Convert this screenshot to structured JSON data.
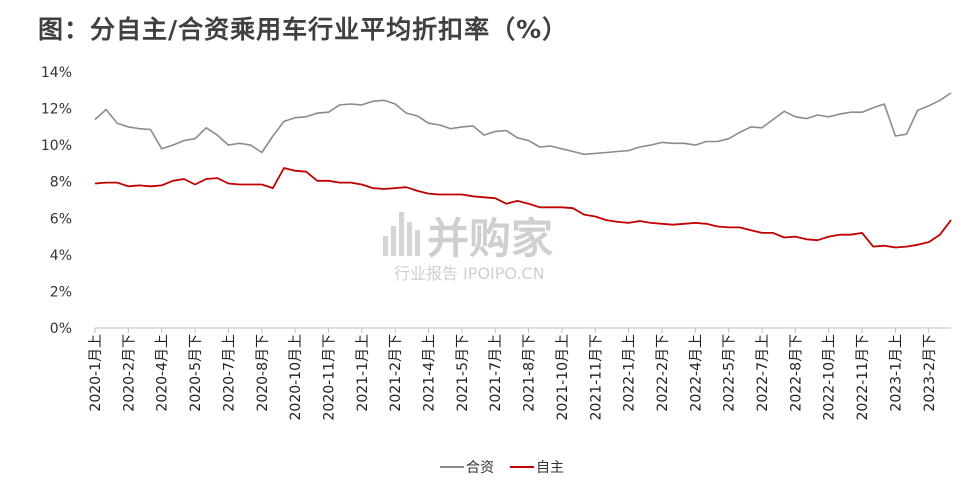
{
  "title": "图：分自主/合资乘用车行业平均折扣率（%）",
  "watermark": {
    "brand": "并购家",
    "subtitle": "行业报告 IPOIPO.CN"
  },
  "chart_data": {
    "type": "line",
    "title": "图：分自主/合资乘用车行业平均折扣率（%）",
    "ylim": [
      0,
      14
    ],
    "yticks": [
      "0%",
      "2%",
      "4%",
      "6%",
      "8%",
      "10%",
      "12%",
      "14%"
    ],
    "ytick_values": [
      0,
      2,
      4,
      6,
      8,
      10,
      12,
      14
    ],
    "grid": false,
    "legend_position": "bottom-center",
    "xtick_labels": [
      "2020-1月上",
      "2020-2月下",
      "2020-4月上",
      "2020-5月下",
      "2020-7月上",
      "2020-8月下",
      "2020-10月上",
      "2020-11月下",
      "2021-1月上",
      "2021-2月下",
      "2021-4月上",
      "2021-5月下",
      "2021-7月上",
      "2021-8月下",
      "2021-10月上",
      "2021-11月下",
      "2022-1月上",
      "2022-2月下",
      "2022-4月上",
      "2022-5月下",
      "2022-7月上",
      "2022-8月下",
      "2022-10月上",
      "2022-11月下",
      "2023-1月上",
      "2023-2月下"
    ],
    "xtick_step": 3,
    "series": [
      {
        "name": "合资",
        "color": "#8c8c8c",
        "values": [
          11.4,
          11.95,
          11.2,
          11.0,
          10.9,
          10.85,
          9.8,
          10.0,
          10.25,
          10.35,
          10.95,
          10.55,
          10.0,
          10.1,
          10.0,
          9.6,
          10.5,
          11.3,
          11.5,
          11.55,
          11.75,
          11.8,
          12.2,
          12.25,
          12.2,
          12.4,
          12.45,
          12.25,
          11.75,
          11.6,
          11.2,
          11.1,
          10.9,
          11.0,
          11.05,
          10.55,
          10.75,
          10.8,
          10.4,
          10.25,
          9.9,
          9.95,
          9.8,
          9.65,
          9.5,
          9.55,
          9.6,
          9.65,
          9.7,
          9.9,
          10.0,
          10.15,
          10.1,
          10.1,
          10.0,
          10.2,
          10.2,
          10.35,
          10.7,
          11.0,
          10.95,
          11.4,
          11.85,
          11.55,
          11.45,
          11.65,
          11.55,
          11.7,
          11.8,
          11.8,
          12.05,
          12.25,
          10.5,
          10.6,
          11.9,
          12.15,
          12.45,
          12.85
        ]
      },
      {
        "name": "自主",
        "color": "#c00000",
        "values": [
          7.9,
          7.95,
          7.95,
          7.75,
          7.8,
          7.75,
          7.8,
          8.05,
          8.15,
          7.85,
          8.15,
          8.2,
          7.9,
          7.85,
          7.85,
          7.85,
          7.65,
          8.75,
          8.6,
          8.55,
          8.05,
          8.05,
          7.95,
          7.95,
          7.85,
          7.65,
          7.6,
          7.65,
          7.7,
          7.5,
          7.35,
          7.3,
          7.3,
          7.3,
          7.2,
          7.15,
          7.1,
          6.8,
          6.95,
          6.8,
          6.6,
          6.6,
          6.6,
          6.55,
          6.2,
          6.1,
          5.9,
          5.8,
          5.75,
          5.85,
          5.75,
          5.7,
          5.65,
          5.7,
          5.75,
          5.7,
          5.55,
          5.5,
          5.5,
          5.35,
          5.2,
          5.2,
          4.95,
          5.0,
          4.85,
          4.8,
          5.0,
          5.1,
          5.1,
          5.2,
          4.45,
          4.5,
          4.4,
          4.45,
          4.55,
          4.7,
          5.1,
          5.9
        ]
      }
    ]
  }
}
